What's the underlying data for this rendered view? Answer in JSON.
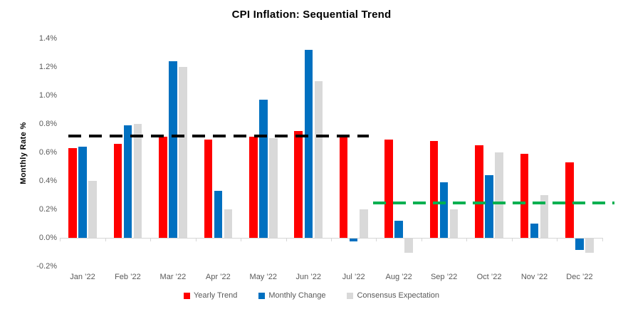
{
  "chart_data": {
    "type": "bar",
    "title": "CPI Inflation: Sequential Trend",
    "ylabel": "Monthly Rate %",
    "xlabel": "",
    "ylim": [
      -0.2,
      1.4
    ],
    "grid": false,
    "legend_position": "bottom",
    "categories": [
      "Jan ’22",
      "Feb ’22",
      "Mar ’22",
      "Apr ’22",
      "May ’22",
      "Jun ’22",
      "Jul ’22",
      "Aug ’22",
      "Sep ’22",
      "Oct ’22",
      "Nov ’22",
      "Dec ’22"
    ],
    "series": [
      {
        "name": "Yearly Trend",
        "color": "#FF0000",
        "values": [
          0.63,
          0.66,
          0.71,
          0.69,
          0.71,
          0.75,
          0.71,
          0.69,
          0.68,
          0.65,
          0.59,
          0.53
        ]
      },
      {
        "name": "Monthly Change",
        "color": "#0070C0",
        "values": [
          0.64,
          0.79,
          1.24,
          0.33,
          0.97,
          1.32,
          -0.02,
          0.12,
          0.39,
          0.44,
          0.1,
          -0.08
        ]
      },
      {
        "name": "Consensus Expectation",
        "color": "#D9D9D9",
        "values": [
          0.4,
          0.8,
          1.2,
          0.2,
          0.7,
          1.1,
          0.2,
          -0.1,
          0.2,
          0.6,
          0.3,
          -0.1
        ]
      }
    ],
    "y_ticks": [
      {
        "label": "1.4%",
        "value": 1.4
      },
      {
        "label": "1.2%",
        "value": 1.2
      },
      {
        "label": "1.0%",
        "value": 1.0
      },
      {
        "label": "0.8%",
        "value": 0.8
      },
      {
        "label": "0.6%",
        "value": 0.6
      },
      {
        "label": "0.4%",
        "value": 0.4
      },
      {
        "label": "0.2%",
        "value": 0.2
      },
      {
        "label": "0.0%",
        "value": 0.0
      },
      {
        "label": "-0.2%",
        "value": -0.2
      }
    ],
    "reference_lines": [
      {
        "value": 0.715,
        "color": "#000000",
        "style": "dashed",
        "start_category": "Jan ’22",
        "end_category": "Jul ’22"
      },
      {
        "value": 0.245,
        "color": "#00B050",
        "style": "dashed",
        "start_category": "Aug ’22",
        "end_category": "Dec ’22"
      }
    ]
  }
}
